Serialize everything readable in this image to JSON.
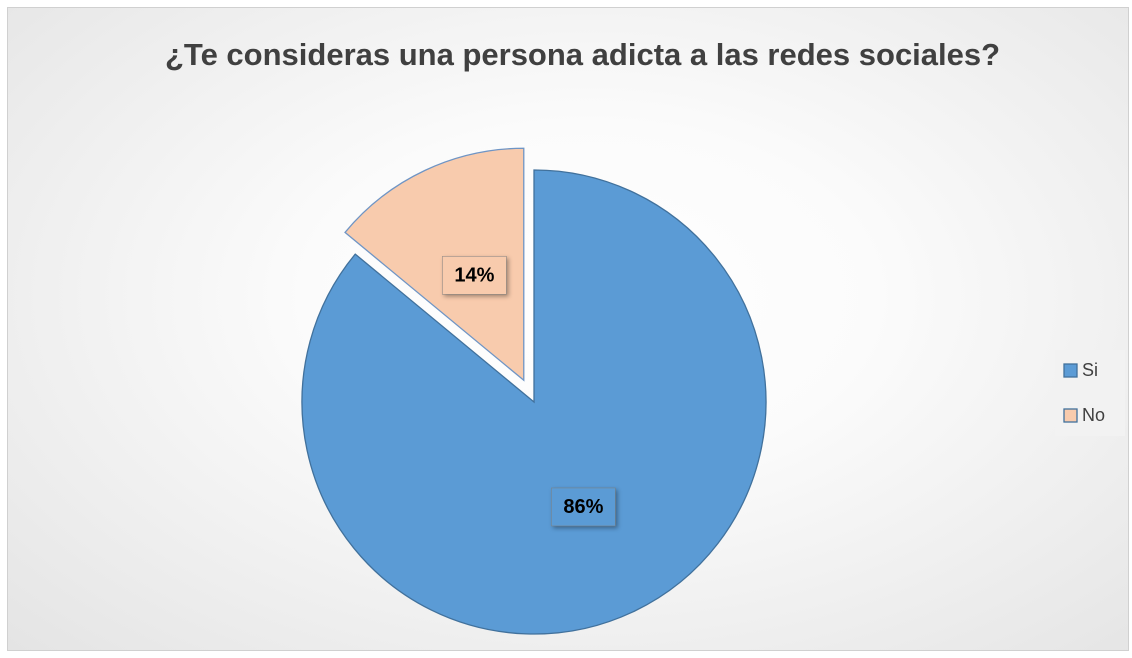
{
  "chart_data": {
    "type": "pie",
    "title": "¿Te consideras una persona adicta a las redes sociales?",
    "categories": [
      "Si",
      "No"
    ],
    "values": [
      86,
      14
    ],
    "value_labels": [
      "86%",
      "14%"
    ],
    "colors": [
      "#5b9bd5",
      "#f8cbad"
    ],
    "legend": "right"
  }
}
